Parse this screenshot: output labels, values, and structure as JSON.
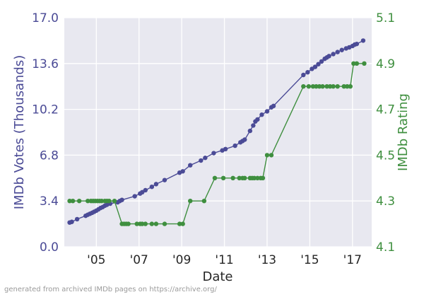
{
  "chart_data": {
    "type": "line",
    "xlabel": "Date",
    "ylabel_left": "IMDb Votes (Thousands)",
    "ylabel_right": "IMDb Rating",
    "xlim": [
      2003.5,
      2017.9
    ],
    "ylim_left": [
      0.0,
      17.0
    ],
    "ylim_right": [
      4.1,
      5.1
    ],
    "x_ticks": [
      2005,
      2007,
      2009,
      2011,
      2013,
      2015,
      2017
    ],
    "x_tick_labels": [
      "'05",
      "'07",
      "'09",
      "'11",
      "'13",
      "'15",
      "'17"
    ],
    "y_left_ticks": [
      "0.0",
      "3.4",
      "6.8",
      "10.2",
      "13.6",
      "17.0"
    ],
    "y_right_ticks": [
      "4.1",
      "4.3",
      "4.5",
      "4.7",
      "4.9",
      "5.1"
    ],
    "grid": true,
    "colors": {
      "votes": "#4b4b96",
      "rating": "#3f8f3f",
      "background": "#e8e8f0",
      "grid": "#ffffff"
    },
    "series": [
      {
        "axis": "left",
        "points": [
          [
            2003.75,
            1.8
          ],
          [
            2003.85,
            1.85
          ],
          [
            2004.1,
            2.05
          ],
          [
            2004.5,
            2.3
          ],
          [
            2004.6,
            2.38
          ],
          [
            2004.7,
            2.45
          ],
          [
            2004.8,
            2.52
          ],
          [
            2004.9,
            2.6
          ],
          [
            2005.0,
            2.68
          ],
          [
            2005.1,
            2.78
          ],
          [
            2005.2,
            2.88
          ],
          [
            2005.3,
            2.95
          ],
          [
            2005.4,
            3.05
          ],
          [
            2005.5,
            3.12
          ],
          [
            2005.65,
            3.2
          ],
          [
            2006.0,
            3.3
          ],
          [
            2006.1,
            3.4
          ],
          [
            2006.2,
            3.48
          ],
          [
            2006.8,
            3.75
          ],
          [
            2007.05,
            3.95
          ],
          [
            2007.15,
            4.05
          ],
          [
            2007.3,
            4.2
          ],
          [
            2007.6,
            4.45
          ],
          [
            2007.8,
            4.65
          ],
          [
            2008.2,
            4.95
          ],
          [
            2008.9,
            5.5
          ],
          [
            2009.05,
            5.6
          ],
          [
            2009.4,
            6.05
          ],
          [
            2009.9,
            6.4
          ],
          [
            2010.1,
            6.6
          ],
          [
            2010.5,
            6.95
          ],
          [
            2010.9,
            7.15
          ],
          [
            2011.05,
            7.25
          ],
          [
            2011.5,
            7.5
          ],
          [
            2011.75,
            7.75
          ],
          [
            2011.85,
            7.85
          ],
          [
            2011.95,
            7.95
          ],
          [
            2012.2,
            8.6
          ],
          [
            2012.35,
            9.0
          ],
          [
            2012.45,
            9.3
          ],
          [
            2012.55,
            9.45
          ],
          [
            2012.75,
            9.8
          ],
          [
            2013.0,
            10.05
          ],
          [
            2013.2,
            10.35
          ],
          [
            2013.3,
            10.45
          ],
          [
            2014.7,
            12.75
          ],
          [
            2014.9,
            12.95
          ],
          [
            2015.1,
            13.2
          ],
          [
            2015.25,
            13.35
          ],
          [
            2015.4,
            13.55
          ],
          [
            2015.55,
            13.75
          ],
          [
            2015.7,
            13.95
          ],
          [
            2015.8,
            14.05
          ],
          [
            2015.9,
            14.15
          ],
          [
            2016.1,
            14.3
          ],
          [
            2016.3,
            14.45
          ],
          [
            2016.5,
            14.6
          ],
          [
            2016.7,
            14.72
          ],
          [
            2016.85,
            14.8
          ],
          [
            2017.0,
            14.9
          ],
          [
            2017.1,
            15.0
          ],
          [
            2017.2,
            15.05
          ],
          [
            2017.5,
            15.3
          ]
        ]
      },
      {
        "axis": "right",
        "points": [
          [
            2003.75,
            4.3
          ],
          [
            2003.9,
            4.3
          ],
          [
            2004.2,
            4.3
          ],
          [
            2004.6,
            4.3
          ],
          [
            2004.75,
            4.3
          ],
          [
            2004.85,
            4.3
          ],
          [
            2004.95,
            4.3
          ],
          [
            2005.05,
            4.3
          ],
          [
            2005.15,
            4.3
          ],
          [
            2005.25,
            4.3
          ],
          [
            2005.4,
            4.3
          ],
          [
            2005.5,
            4.3
          ],
          [
            2005.6,
            4.3
          ],
          [
            2005.85,
            4.3
          ],
          [
            2006.2,
            4.2
          ],
          [
            2006.3,
            4.2
          ],
          [
            2006.4,
            4.2
          ],
          [
            2006.5,
            4.2
          ],
          [
            2006.9,
            4.2
          ],
          [
            2007.05,
            4.2
          ],
          [
            2007.15,
            4.2
          ],
          [
            2007.3,
            4.2
          ],
          [
            2007.6,
            4.2
          ],
          [
            2007.8,
            4.2
          ],
          [
            2008.2,
            4.2
          ],
          [
            2008.9,
            4.2
          ],
          [
            2009.05,
            4.2
          ],
          [
            2009.4,
            4.3
          ],
          [
            2010.05,
            4.3
          ],
          [
            2010.55,
            4.4
          ],
          [
            2010.95,
            4.4
          ],
          [
            2011.4,
            4.4
          ],
          [
            2011.7,
            4.4
          ],
          [
            2011.85,
            4.4
          ],
          [
            2011.95,
            4.4
          ],
          [
            2012.2,
            4.4
          ],
          [
            2012.3,
            4.4
          ],
          [
            2012.4,
            4.4
          ],
          [
            2012.55,
            4.4
          ],
          [
            2012.7,
            4.4
          ],
          [
            2012.8,
            4.4
          ],
          [
            2013.0,
            4.5
          ],
          [
            2013.2,
            4.5
          ],
          [
            2014.7,
            4.8
          ],
          [
            2014.95,
            4.8
          ],
          [
            2015.15,
            4.8
          ],
          [
            2015.3,
            4.8
          ],
          [
            2015.45,
            4.8
          ],
          [
            2015.6,
            4.8
          ],
          [
            2015.8,
            4.8
          ],
          [
            2015.95,
            4.8
          ],
          [
            2016.1,
            4.8
          ],
          [
            2016.3,
            4.8
          ],
          [
            2016.6,
            4.8
          ],
          [
            2016.75,
            4.8
          ],
          [
            2016.9,
            4.8
          ],
          [
            2017.05,
            4.9
          ],
          [
            2017.2,
            4.9
          ],
          [
            2017.55,
            4.9
          ]
        ]
      }
    ]
  },
  "footer": {
    "credit": "generated from archived IMDb pages on https://archive.org/"
  }
}
